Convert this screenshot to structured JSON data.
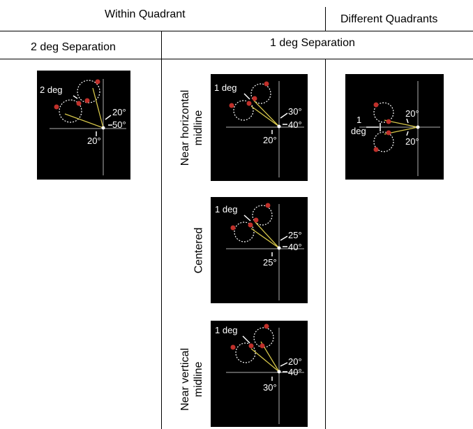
{
  "headers": {
    "within_quadrant": "Within Quadrant",
    "different_quadrants": "Different Quadrants",
    "two_deg_separation": "2 deg Separation",
    "one_deg_separation": "1 deg Separation"
  },
  "row_labels": {
    "near_horizontal_l1": "Near horizontal",
    "near_horizontal_l2": "midline",
    "centered": "Centered",
    "near_vertical_l1": "Near vertical",
    "near_vertical_l2": "midline"
  },
  "panels": {
    "two_deg": {
      "sep": "2 deg",
      "a1": "20°",
      "a2": "50°",
      "a3": "20°"
    },
    "near_horizontal": {
      "sep": "1 deg",
      "a1": "30°",
      "a2": "40°",
      "a3": "20°"
    },
    "centered": {
      "sep": "1 deg",
      "a1": "25°",
      "a2": "40°",
      "a3": "25°"
    },
    "near_vertical": {
      "sep": "1 deg",
      "a1": "20°",
      "a2": "40°",
      "a3": "30°"
    },
    "different": {
      "sep1": "1",
      "sep2": "deg",
      "a1": "20°",
      "a2": "20°"
    }
  },
  "colors": {
    "background": "#000000",
    "line": "#d6c64a",
    "dot": "#c0302a",
    "text": "#ffffff",
    "axis": "#b0b0b0"
  }
}
